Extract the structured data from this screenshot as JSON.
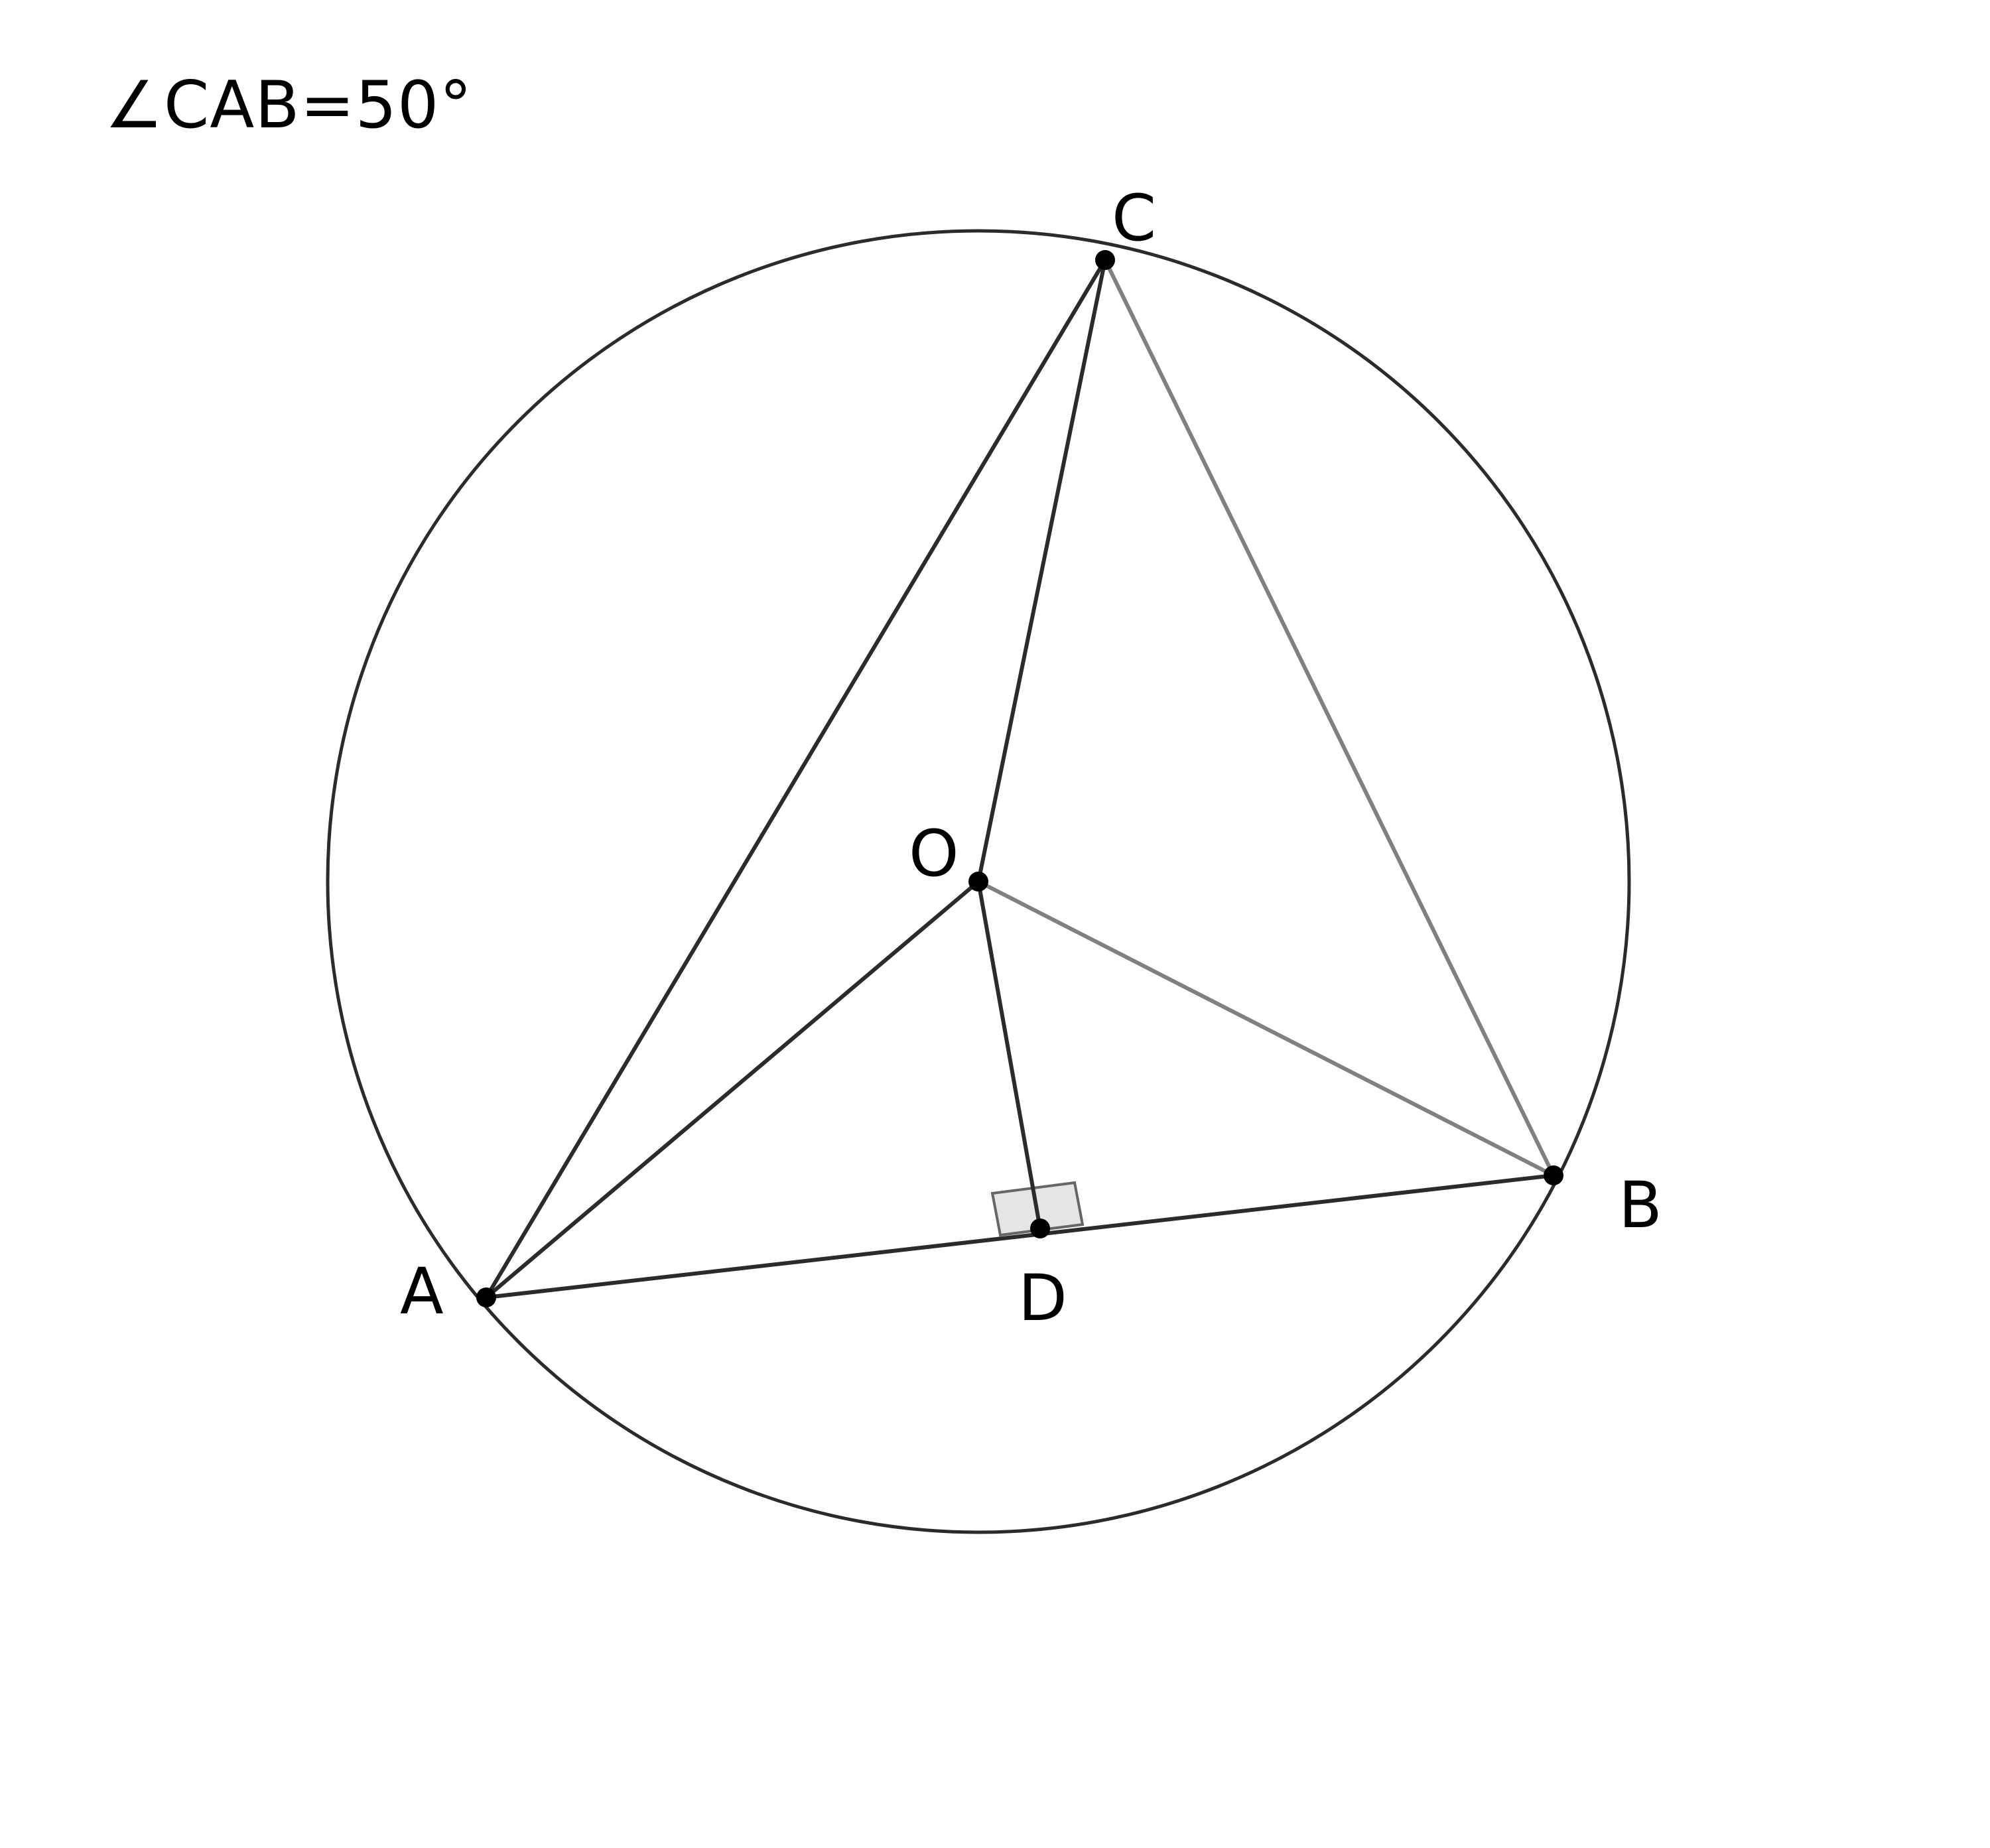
{
  "annotation": "∠CAB=50°",
  "circle": {
    "center": "O"
  },
  "points": {
    "A": {
      "label": "A"
    },
    "B": {
      "label": "B"
    },
    "C": {
      "label": "C"
    },
    "O": {
      "label": "O"
    },
    "D": {
      "label": "D"
    }
  },
  "segments": [
    {
      "from": "A",
      "to": "C",
      "style": "dark"
    },
    {
      "from": "C",
      "to": "B",
      "style": "gray"
    },
    {
      "from": "A",
      "to": "B",
      "style": "dark"
    },
    {
      "from": "C",
      "to": "O",
      "style": "dark"
    },
    {
      "from": "O",
      "to": "D",
      "style": "dark"
    },
    {
      "from": "A",
      "to": "O",
      "style": "dark"
    },
    {
      "from": "O",
      "to": "B",
      "style": "gray"
    }
  ],
  "right_angle_mark": {
    "at": "D"
  },
  "colors": {
    "dark_stroke": "#2b2b2b",
    "gray_stroke": "#808080",
    "right_angle_fill": "#e5e5e5",
    "right_angle_stroke": "#666666",
    "point": "#000000"
  }
}
